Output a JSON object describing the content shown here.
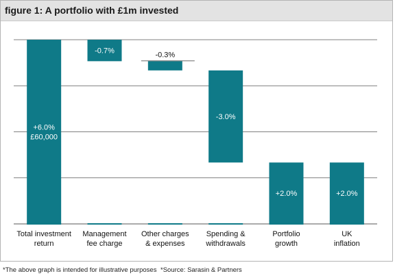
{
  "figure_label": "figure 1: A portfolio with £1m invested",
  "colors": {
    "bar": "#0f7a88",
    "grid": "#555555",
    "title_bg": "#e3e3e3"
  },
  "footnotes": {
    "illustrative": "*The above graph is intended for illustrative purposes",
    "source": "*Source: Sarasin & Partners"
  },
  "chart_data": {
    "type": "waterfall",
    "title": "A portfolio with £1m invested",
    "ylim": [
      0,
      6.0
    ],
    "grid": true,
    "categories": [
      [
        "Total investment",
        "return"
      ],
      [
        "Management",
        "fee charge"
      ],
      [
        "Other charges",
        "& expenses"
      ],
      [
        "Spending &",
        "withdrawals"
      ],
      [
        "Portfolio",
        "growth"
      ],
      [
        "UK",
        "inflation"
      ]
    ],
    "bars": [
      {
        "start": 0.0,
        "end": 6.0,
        "labels": [
          "+6.0%",
          "£60,000"
        ],
        "label_pos": "inside"
      },
      {
        "start": 5.3,
        "end": 6.0,
        "labels": [
          "-0.7%"
        ],
        "label_pos": "inside"
      },
      {
        "start": 5.0,
        "end": 5.3,
        "labels": [
          "-0.3%"
        ],
        "label_pos": "above"
      },
      {
        "start": 2.0,
        "end": 5.0,
        "labels": [
          "-3.0%"
        ],
        "label_pos": "inside"
      },
      {
        "start": 0.0,
        "end": 2.0,
        "labels": [
          "+2.0%"
        ],
        "label_pos": "inside"
      },
      {
        "start": 0.0,
        "end": 2.0,
        "labels": [
          "+2.0%"
        ],
        "label_pos": "inside"
      }
    ]
  }
}
